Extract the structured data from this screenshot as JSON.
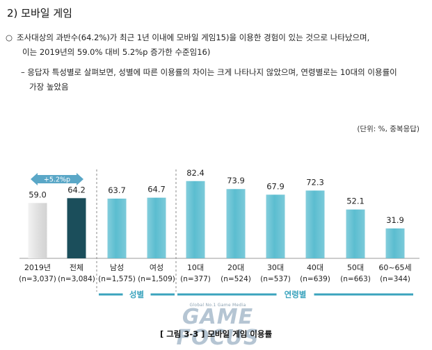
{
  "heading": "2) 모바일 게임",
  "bullets": {
    "main_mark": "○",
    "main_line1": "조사대상의 과반수(64.2%)가 최근 1년 이내에 모바일 게임15)을 이용한 경험이 있는 것으로 나타났으며,",
    "main_line2": "이는 2019년의 59.0% 대비 5.2%p 증가한 수준임16)",
    "sub_line1": "– 응답자 특성별로 살펴보면, 성별에 따른 이용률의 차이는 크게 나타나지 않았으며, 연령별로는 10대의 이용률이",
    "sub_line2": "가장 높았음"
  },
  "unit_note": "(단위: %, 중복응답)",
  "caption": "[ 그림 3-3 ] 모바일 게임 이용률",
  "watermark": {
    "small": "Global No.1 Game Media",
    "big": "GAME FOCUS"
  },
  "colors": {
    "bar_2019": "#e0e0e0",
    "bar_total": "#1b4e5b",
    "bar_teal": "#5bbdd0",
    "group_line": "#3aa3bd",
    "badge": "#5aa7c7"
  },
  "chart_data": {
    "type": "bar",
    "values_shown_as_labels": true,
    "categories": [
      {
        "label": "2019년",
        "n": "(n=3,037)",
        "value": 59.0,
        "display": "59.0",
        "style": "2019"
      },
      {
        "label": "전체",
        "n": "(n=3,084)",
        "value": 64.2,
        "display": "64.2",
        "style": "total"
      },
      {
        "label": "남성",
        "n": "(n=1,575)",
        "value": 63.7,
        "display": "63.7",
        "style": "teal"
      },
      {
        "label": "여성",
        "n": "(n=1,509)",
        "value": 64.7,
        "display": "64.7",
        "style": "teal"
      },
      {
        "label": "10대",
        "n": "(n=377)",
        "value": 82.4,
        "display": "82.4",
        "style": "teal"
      },
      {
        "label": "20대",
        "n": "(n=524)",
        "value": 73.9,
        "display": "73.9",
        "style": "teal"
      },
      {
        "label": "30대",
        "n": "(n=537)",
        "value": 67.9,
        "display": "67.9",
        "style": "teal"
      },
      {
        "label": "40대",
        "n": "(n=639)",
        "value": 72.3,
        "display": "72.3",
        "style": "teal"
      },
      {
        "label": "50대",
        "n": "(n=663)",
        "value": 52.1,
        "display": "52.1",
        "style": "teal"
      },
      {
        "label": "60~65세",
        "n": "(n=344)",
        "value": 31.9,
        "display": "31.9",
        "style": "teal"
      }
    ],
    "groups": [
      {
        "label": "성별",
        "from": 2,
        "to": 3
      },
      {
        "label": "연령별",
        "from": 4,
        "to": 9
      }
    ],
    "annotation": {
      "label": "+5.2%p",
      "from": 0,
      "to": 1
    }
  }
}
